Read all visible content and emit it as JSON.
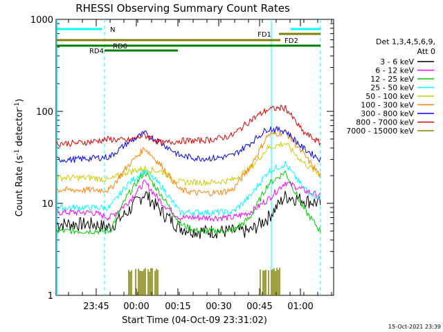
{
  "chart_data": {
    "type": "line",
    "title": "RHESSI Observing Summary Count Rates",
    "xlabel": "Start Time (04-Oct-09 23:31:02)",
    "ylabel_main": "Count Rate (s",
    "ylabel_sup1": "-1",
    "ylabel_mid": " detector",
    "ylabel_sup2": "-1",
    "ylabel_end": ")",
    "y_scale": "log",
    "ylim": [
      1,
      1000
    ],
    "x_ticks": [
      "23:45",
      "00:00",
      "00:15",
      "00:30",
      "00:45",
      "01:00"
    ],
    "y_ticks": [
      "1",
      "10",
      "100",
      "1000"
    ],
    "legend_title_1": "Det 1,3,4,5,6,9,",
    "legend_title_2": "Att 0",
    "timestamp": "15-Oct-2021 23:39",
    "flags": [
      {
        "label": "N",
        "color": "#00ffff"
      },
      {
        "label": "FD1",
        "color": "#808000"
      },
      {
        "label": "FD2",
        "color": "#808000"
      },
      {
        "label": "RD0",
        "color": "#008000"
      },
      {
        "label": "RD4",
        "color": "#008000"
      }
    ],
    "series": [
      {
        "name": "3 - 6 keV",
        "color": "#000000",
        "values": [
          6,
          6,
          6,
          5.5,
          8,
          13,
          8,
          5.5,
          5,
          5,
          5,
          5,
          7,
          12,
          11,
          10
        ]
      },
      {
        "name": "6 - 12 keV",
        "color": "#ff00ff",
        "values": [
          8,
          8,
          8,
          7,
          10,
          17,
          10,
          7,
          7,
          7,
          7,
          8,
          11,
          17,
          14,
          12
        ]
      },
      {
        "name": "12 - 25 keV",
        "color": "#00cc00",
        "values": [
          5,
          5,
          5,
          5,
          12,
          22,
          12,
          6,
          5,
          5,
          5,
          7,
          16,
          22,
          9,
          5
        ]
      },
      {
        "name": "25 - 50 keV",
        "color": "#00ffff",
        "values": [
          9,
          9,
          9,
          9,
          16,
          23,
          15,
          8,
          8,
          8,
          8,
          12,
          22,
          27,
          15,
          11
        ]
      },
      {
        "name": "50 - 100 keV",
        "color": "#cccc00",
        "values": [
          19,
          19,
          19,
          18,
          22,
          24,
          22,
          17,
          17,
          17,
          18,
          24,
          40,
          45,
          28,
          20
        ]
      },
      {
        "name": "100 - 300 keV",
        "color": "#ff8000",
        "values": [
          14,
          14,
          14,
          14,
          25,
          40,
          25,
          14,
          13,
          13,
          14,
          25,
          55,
          60,
          35,
          20
        ]
      },
      {
        "name": "300 - 800 keV",
        "color": "#0000ff",
        "values": [
          30,
          30,
          31,
          32,
          45,
          58,
          45,
          33,
          31,
          31,
          33,
          45,
          65,
          62,
          40,
          30
        ]
      },
      {
        "name": "800 - 7000 keV",
        "color": "#dd0000",
        "values": [
          45,
          45,
          47,
          50,
          48,
          55,
          45,
          48,
          48,
          50,
          55,
          80,
          105,
          110,
          60,
          45
        ]
      },
      {
        "name": "7000 - 15000 keV",
        "color": "#808000",
        "values": [
          1,
          1,
          1,
          1,
          1,
          2,
          1,
          1,
          1,
          1,
          1,
          1,
          1.8,
          1.8,
          1,
          1
        ]
      }
    ]
  }
}
